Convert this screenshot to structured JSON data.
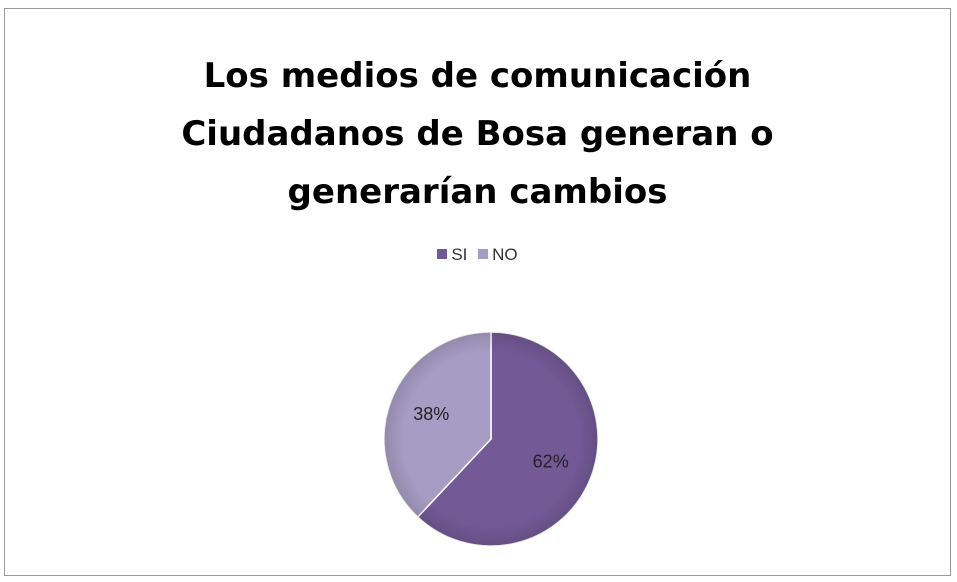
{
  "chart_data": {
    "type": "pie",
    "title": [
      "Los medios de comunicación",
      "Ciudadanos de Bosa generan o",
      "generarían cambios"
    ],
    "categories": [
      "SI",
      "NO"
    ],
    "values": [
      62,
      38
    ],
    "labels": [
      "62%",
      "38%"
    ],
    "colors": [
      "#735996",
      "#a79cc4"
    ],
    "legend": "top"
  }
}
